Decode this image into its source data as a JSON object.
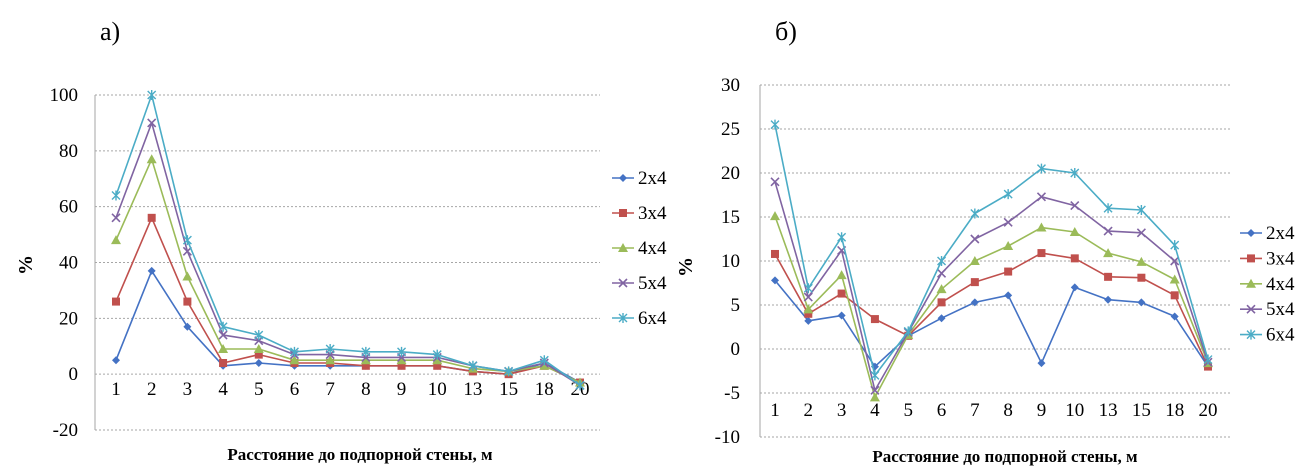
{
  "charts": {
    "chart_data": [
      {
        "type": "line",
        "panel_label": "а)",
        "title": "",
        "xlabel": "Расстояние до подпорной стены, м",
        "ylabel": "%",
        "categories": [
          "1",
          "2",
          "3",
          "4",
          "5",
          "6",
          "7",
          "8",
          "9",
          "10",
          "13",
          "15",
          "18",
          "20"
        ],
        "ylim": [
          -20,
          100
        ],
        "yticks": [
          "100",
          "80",
          "60",
          "40",
          "20",
          "0",
          "-20"
        ],
        "grid": true,
        "legend_position": "right",
        "series": [
          {
            "name": "2x4",
            "color": "#4472C4",
            "marker": "diamond",
            "values": [
              5,
              37,
              17,
              3,
              4,
              3,
              3,
              3,
              3,
              3,
              1,
              0,
              4,
              -3
            ]
          },
          {
            "name": "3x4",
            "color": "#C0504D",
            "marker": "square",
            "values": [
              26,
              56,
              26,
              4,
              7,
              4,
              4,
              3,
              3,
              3,
              1,
              0,
              3,
              -3
            ]
          },
          {
            "name": "4x4",
            "color": "#9BBB59",
            "marker": "triangle",
            "values": [
              48,
              77,
              35,
              9,
              9,
              5,
              5,
              5,
              5,
              5,
              2,
              1,
              3,
              -3
            ]
          },
          {
            "name": "5x4",
            "color": "#8064A2",
            "marker": "x",
            "values": [
              56,
              90,
              44,
              14,
              12,
              7,
              7,
              6,
              6,
              6,
              3,
              1,
              4,
              -4
            ]
          },
          {
            "name": "6x4",
            "color": "#4BACC6",
            "marker": "star",
            "values": [
              64,
              100,
              48,
              17,
              14,
              8,
              9,
              8,
              8,
              7,
              3,
              1,
              5,
              -4
            ]
          }
        ]
      },
      {
        "type": "line",
        "panel_label": "б)",
        "title": "",
        "xlabel": "Расстояние до подпорной стены, м",
        "ylabel": "%",
        "categories": [
          "1",
          "2",
          "3",
          "4",
          "5",
          "6",
          "7",
          "8",
          "9",
          "10",
          "13",
          "15",
          "18",
          "20"
        ],
        "ylim": [
          -10,
          30
        ],
        "yticks": [
          "30",
          "25",
          "20",
          "15",
          "10",
          "5",
          "0",
          "-5",
          "-10"
        ],
        "grid": true,
        "legend_position": "right",
        "series": [
          {
            "name": "2x4",
            "color": "#4472C4",
            "marker": "diamond",
            "values": [
              7.8,
              3.2,
              3.8,
              -2.0,
              1.5,
              3.5,
              5.3,
              6.1,
              -1.6,
              7.0,
              5.6,
              5.3,
              3.7,
              -2.0
            ]
          },
          {
            "name": "3x4",
            "color": "#C0504D",
            "marker": "square",
            "values": [
              10.8,
              4.0,
              6.3,
              3.4,
              1.5,
              5.3,
              7.6,
              8.8,
              10.9,
              10.3,
              8.2,
              8.1,
              6.1,
              -2.0
            ]
          },
          {
            "name": "4x4",
            "color": "#9BBB59",
            "marker": "triangle",
            "values": [
              15.1,
              4.5,
              8.4,
              -5.5,
              1.6,
              6.8,
              10.0,
              11.7,
              13.8,
              13.3,
              10.9,
              9.9,
              7.9,
              -1.6
            ]
          },
          {
            "name": "5x4",
            "color": "#8064A2",
            "marker": "x",
            "values": [
              19.0,
              5.9,
              11.2,
              -4.7,
              1.9,
              8.6,
              12.5,
              14.4,
              17.3,
              16.3,
              13.4,
              13.2,
              10.0,
              -1.5
            ]
          },
          {
            "name": "6x4",
            "color": "#4BACC6",
            "marker": "star",
            "values": [
              25.5,
              6.9,
              12.7,
              -3.0,
              2.0,
              10.0,
              15.4,
              17.6,
              20.5,
              20.0,
              16.0,
              15.8,
              11.8,
              -1.2
            ]
          }
        ]
      }
    ]
  }
}
